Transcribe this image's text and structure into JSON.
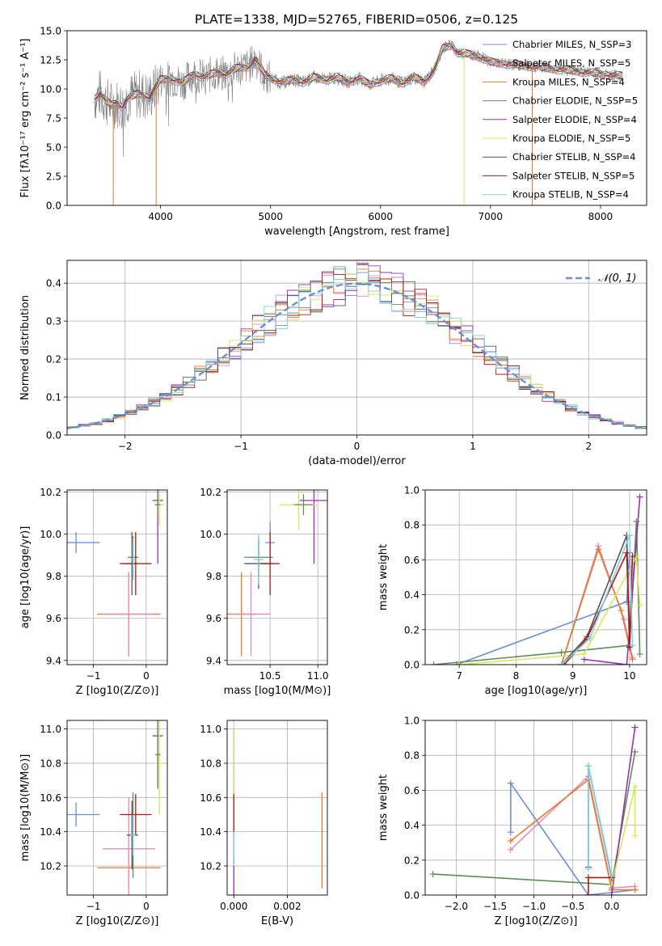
{
  "title": "PLATE=1338, MJD=52765, FIBERID=0506, z=0.125",
  "colors": {
    "chabrier_miles": "#6b8fd6",
    "salpeter_miles": "#e88ab8",
    "kroupa_miles": "#e07b2a",
    "chabrier_elodie": "#5e8c5a",
    "salpeter_elodie": "#9b30b0",
    "kroupa_elodie": "#d6e85a",
    "chabrier_stelib": "#555555",
    "salpeter_stelib": "#b01818",
    "kroupa_stelib": "#7fd3e0",
    "data_gray": "#808080",
    "grid": "#b0b0b0"
  },
  "chart_data": [
    {
      "id": "spectrum",
      "type": "line",
      "xlabel": "wavelength [Angstrom, rest frame]",
      "ylabel": "Flux [fλ10⁻¹⁷ erg cm⁻² s⁻¹ A⁻¹]",
      "xlim": [
        3150,
        8420
      ],
      "ylim": [
        0,
        15
      ],
      "xticks": [
        4000,
        5000,
        6000,
        7000,
        8000
      ],
      "yticks": [
        0.0,
        2.5,
        5.0,
        7.5,
        10.0,
        12.5,
        15.0
      ],
      "grid": false,
      "legend_position": "top-right",
      "legend": [
        "Chabrier MILES, N_SSP=3",
        "Salpeter MILES, N_SSP=5",
        "Kroupa MILES, N_SSP=4",
        "Chabrier ELODIE, N_SSP=5",
        "Salpeter ELODIE, N_SSP=4",
        "Kroupa ELODIE, N_SSP=5",
        "Chabrier STELIB, N_SSP=4",
        "Salpeter STELIB, N_SSP=5",
        "Kroupa STELIB, N_SSP=4"
      ],
      "model_curve": {
        "x": [
          3400,
          3450,
          3500,
          3550,
          3600,
          3650,
          3700,
          3800,
          3900,
          4000,
          4100,
          4200,
          4300,
          4400,
          4500,
          4600,
          4700,
          4800,
          4861,
          4950,
          5100,
          5200,
          5300,
          5400,
          5500,
          5600,
          5700,
          5800,
          5900,
          6000,
          6100,
          6200,
          6300,
          6400,
          6500,
          6563,
          6650,
          6700,
          6800,
          6900,
          7000,
          7100,
          7200,
          7300,
          7400,
          7500,
          7600,
          7700,
          7800,
          7900,
          8000,
          8100,
          8200
        ],
        "y": [
          9.2,
          9.6,
          9.0,
          8.6,
          8.8,
          8.5,
          9.2,
          9.6,
          9.3,
          10.8,
          10.9,
          10.5,
          11.3,
          11.0,
          11.4,
          11.3,
          11.8,
          11.9,
          12.6,
          11.2,
          10.5,
          10.8,
          10.6,
          11.0,
          10.8,
          11.0,
          10.6,
          10.9,
          10.4,
          10.7,
          10.9,
          10.5,
          11.0,
          10.6,
          11.8,
          13.5,
          13.8,
          13.1,
          13.0,
          12.8,
          12.3,
          12.2,
          12.1,
          12.0,
          11.9,
          11.8,
          11.7,
          11.6,
          11.5,
          11.4,
          11.3,
          11.2,
          11.1
        ]
      },
      "dropouts": [
        {
          "x": 3570,
          "color": "#e07b2a"
        },
        {
          "x": 3960,
          "color": "#e07b2a"
        },
        {
          "x": 6760,
          "color": "#d6e85a"
        },
        {
          "x": 7380,
          "color": "#e07b2a"
        }
      ]
    },
    {
      "id": "residuals",
      "type": "area",
      "xlabel": "(data-model)/error",
      "ylabel": "Normed distribution",
      "xlim": [
        -2.5,
        2.5
      ],
      "ylim": [
        0,
        0.46
      ],
      "xticks": [
        -2,
        -1,
        0,
        1,
        2
      ],
      "yticks": [
        0.0,
        0.1,
        0.2,
        0.3,
        0.4
      ],
      "grid": true,
      "legend_position": "top-right",
      "legend": [
        "N(0,1)"
      ],
      "bin_width": 0.1
    },
    {
      "id": "age_vs_Z",
      "type": "scatter",
      "xlabel": "Z [log10(Z/Z⊙)]",
      "ylabel": "age [log10(age/yr)]",
      "xlim": [
        -1.5,
        0.4
      ],
      "ylim": [
        9.38,
        10.21
      ],
      "xticks": [
        -1,
        0
      ],
      "yticks": [
        9.4,
        9.6,
        9.8,
        10.0,
        10.2
      ],
      "grid": true,
      "points": [
        {
          "x": -1.33,
          "y": 9.96,
          "xerr": 0.45,
          "yerr": 0.05,
          "color": "#6b8fd6"
        },
        {
          "x": -0.33,
          "y": 9.62,
          "xerr": 0.6,
          "yerr": 0.2,
          "color": "#e07b2a"
        },
        {
          "x": -0.33,
          "y": 9.62,
          "xerr": 0.5,
          "yerr": 0.2,
          "color": "#e88ab8"
        },
        {
          "x": -0.25,
          "y": 9.89,
          "xerr": 0.1,
          "yerr": 0.1,
          "color": "#5e8c5a"
        },
        {
          "x": -0.27,
          "y": 9.86,
          "xerr": 0.1,
          "yerr": 0.15,
          "color": "#555555"
        },
        {
          "x": -0.2,
          "y": 9.86,
          "xerr": 0.3,
          "yerr": 0.15,
          "color": "#b01818"
        },
        {
          "x": -0.25,
          "y": 9.88,
          "xerr": 0.05,
          "yerr": 0.1,
          "color": "#7fd3e0"
        },
        {
          "x": 0.22,
          "y": 10.16,
          "xerr": 0.1,
          "yerr": 0.3,
          "color": "#9b30b0"
        },
        {
          "x": 0.25,
          "y": 10.14,
          "xerr": 0.1,
          "yerr": 0.1,
          "color": "#d6e85a"
        },
        {
          "x": 0.22,
          "y": 10.14,
          "xerr": 0.05,
          "yerr": 0.05,
          "color": "#5e8c5a"
        }
      ]
    },
    {
      "id": "age_vs_mass",
      "type": "scatter",
      "xlabel": "mass [log10(M/M⊙)]",
      "ylabel": "",
      "xlim": [
        10.05,
        11.1
      ],
      "ylim": [
        9.38,
        10.21
      ],
      "xticks": [
        10.5,
        11.0
      ],
      "yticks": [
        9.4,
        9.6,
        9.8,
        10.0,
        10.2
      ],
      "grid": true,
      "points": [
        {
          "x": 10.5,
          "y": 9.96,
          "xerr": 0.05,
          "yerr": 0.1,
          "color": "#6b8fd6"
        },
        {
          "x": 10.2,
          "y": 9.62,
          "xerr": 0.15,
          "yerr": 0.2,
          "color": "#e07b2a"
        },
        {
          "x": 10.3,
          "y": 9.62,
          "xerr": 0.2,
          "yerr": 0.2,
          "color": "#e88ab8"
        },
        {
          "x": 10.38,
          "y": 9.89,
          "xerr": 0.15,
          "yerr": 0.08,
          "color": "#5e8c5a"
        },
        {
          "x": 10.38,
          "y": 9.86,
          "xerr": 0.15,
          "yerr": 0.12,
          "color": "#555555"
        },
        {
          "x": 10.5,
          "y": 9.86,
          "xerr": 0.1,
          "yerr": 0.15,
          "color": "#b01818"
        },
        {
          "x": 10.38,
          "y": 9.88,
          "xerr": 0.05,
          "yerr": 0.12,
          "color": "#7fd3e0"
        },
        {
          "x": 10.96,
          "y": 10.16,
          "xerr": 0.15,
          "yerr": 0.3,
          "color": "#9b30b0"
        },
        {
          "x": 10.8,
          "y": 10.14,
          "xerr": 0.2,
          "yerr": 0.12,
          "color": "#d6e85a"
        },
        {
          "x": 10.85,
          "y": 10.14,
          "xerr": 0.1,
          "yerr": 0.05,
          "color": "#5e8c5a"
        }
      ]
    },
    {
      "id": "massweight_vs_age",
      "type": "line",
      "xlabel": "age  [log10(age/yr)]",
      "ylabel": "mass weight",
      "xlim": [
        6.4,
        10.3
      ],
      "ylim": [
        0,
        1.0
      ],
      "xticks": [
        7,
        8,
        9,
        10
      ],
      "yticks": [
        0.0,
        0.2,
        0.4,
        0.6,
        0.8,
        1.0
      ],
      "grid": true,
      "series": [
        {
          "color": "#6b8fd6",
          "x": [
            6.95,
            9.95,
            10.0
          ],
          "y": [
            0.0,
            0.36,
            0.64
          ]
        },
        {
          "color": "#e88ab8",
          "x": [
            8.8,
            9.45,
            9.9,
            10.05
          ],
          "y": [
            0.0,
            0.68,
            0.26,
            0.04
          ]
        },
        {
          "color": "#e07b2a",
          "x": [
            8.8,
            9.45,
            9.85,
            10.05
          ],
          "y": [
            0.0,
            0.66,
            0.31,
            0.03
          ]
        },
        {
          "color": "#5e8c5a",
          "x": [
            6.55,
            8.8,
            10.0,
            10.12,
            10.18
          ],
          "y": [
            0.0,
            0.07,
            0.11,
            0.82,
            0.06
          ]
        },
        {
          "color": "#9b30b0",
          "x": [
            9.2,
            9.95,
            10.18
          ],
          "y": [
            0.03,
            0.0,
            0.96
          ]
        },
        {
          "color": "#d6e85a",
          "x": [
            7.0,
            9.2,
            10.12,
            10.18
          ],
          "y": [
            0.0,
            0.06,
            0.62,
            0.34
          ]
        },
        {
          "color": "#555555",
          "x": [
            8.8,
            9.25,
            9.95,
            10.0
          ],
          "y": [
            0.0,
            0.16,
            0.74,
            0.1
          ]
        },
        {
          "color": "#b01818",
          "x": [
            8.85,
            9.25,
            9.95,
            10.0,
            10.05
          ],
          "y": [
            0.0,
            0.15,
            0.64,
            0.1,
            0.62
          ]
        },
        {
          "color": "#7fd3e0",
          "x": [
            8.8,
            9.3,
            10.0,
            10.05
          ],
          "y": [
            0.0,
            0.15,
            0.74,
            0.11
          ]
        }
      ]
    },
    {
      "id": "mass_vs_Z",
      "type": "scatter",
      "xlabel": "Z [log10(Z/Z⊙)]",
      "ylabel": "mass [log10(M/M⊙)]",
      "xlim": [
        -1.5,
        0.4
      ],
      "ylim": [
        10.03,
        11.05
      ],
      "xticks": [
        -1,
        0
      ],
      "yticks": [
        10.2,
        10.4,
        10.6,
        10.8,
        11.0
      ],
      "grid": true,
      "points": [
        {
          "x": -1.33,
          "y": 10.5,
          "xerr": 0.45,
          "yerr": 0.07,
          "color": "#6b8fd6"
        },
        {
          "x": -0.33,
          "y": 10.19,
          "xerr": 0.6,
          "yerr": 0.13,
          "color": "#e07b2a"
        },
        {
          "x": -0.33,
          "y": 10.3,
          "xerr": 0.5,
          "yerr": 0.3,
          "color": "#e88ab8"
        },
        {
          "x": -0.25,
          "y": 10.38,
          "xerr": 0.1,
          "yerr": 0.25,
          "color": "#5e8c5a"
        },
        {
          "x": -0.27,
          "y": 10.38,
          "xerr": 0.1,
          "yerr": 0.2,
          "color": "#555555"
        },
        {
          "x": -0.2,
          "y": 10.5,
          "xerr": 0.3,
          "yerr": 0.12,
          "color": "#b01818"
        },
        {
          "x": -0.25,
          "y": 10.38,
          "xerr": 0.05,
          "yerr": 0.12,
          "color": "#7fd3e0"
        },
        {
          "x": 0.22,
          "y": 10.96,
          "xerr": 0.1,
          "yerr": 0.3,
          "color": "#9b30b0"
        },
        {
          "x": 0.25,
          "y": 10.8,
          "xerr": 0.1,
          "yerr": 0.3,
          "color": "#d6e85a"
        },
        {
          "x": 0.22,
          "y": 10.85,
          "xerr": 0.05,
          "yerr": 0.2,
          "color": "#5e8c5a"
        }
      ]
    },
    {
      "id": "mass_vs_ebv",
      "type": "scatter",
      "xlabel": "E(B-V)",
      "ylabel": "",
      "xlim": [
        -0.00025,
        0.0035
      ],
      "ylim": [
        10.03,
        11.05
      ],
      "xticks": [
        0.0,
        0.002
      ],
      "xtick_labels": [
        "0.000",
        "0.002"
      ],
      "yticks": [
        10.2,
        10.4,
        10.6,
        10.8,
        11.0
      ],
      "grid": true,
      "points": [
        {
          "x": 0.0,
          "y": 10.5,
          "yerr": 0.5,
          "color": "#9b30b0"
        },
        {
          "x": 0.0,
          "y": 10.7,
          "yerr": 0.3,
          "color": "#d6e85a"
        },
        {
          "x": 0.0,
          "y": 10.5,
          "yerr": 0.12,
          "color": "#b01818"
        },
        {
          "x": 0.0,
          "y": 10.3,
          "yerr": 0.1,
          "color": "#7fd3e0"
        },
        {
          "x": 0.0033,
          "y": 10.35,
          "yerr": 0.28,
          "color": "#e07b2a"
        }
      ]
    },
    {
      "id": "massweight_vs_Z",
      "type": "line",
      "xlabel": "Z [log10(Z/Z⊙)]",
      "ylabel": "mass weight",
      "xlim": [
        -2.4,
        0.45
      ],
      "ylim": [
        0,
        1.0
      ],
      "xticks": [
        -2.0,
        -1.5,
        -1.0,
        -0.5,
        0.0
      ],
      "yticks": [
        0.0,
        0.2,
        0.4,
        0.6,
        0.8,
        1.0
      ],
      "grid": true,
      "series": [
        {
          "color": "#6b8fd6",
          "x": [
            -1.3,
            -1.3,
            -0.3,
            0.3
          ],
          "y": [
            0.36,
            0.64,
            0.0,
            0.03
          ]
        },
        {
          "color": "#e88ab8",
          "x": [
            -1.3,
            -0.3,
            0.0,
            0.3
          ],
          "y": [
            0.26,
            0.68,
            0.04,
            0.05
          ]
        },
        {
          "color": "#e07b2a",
          "x": [
            -1.3,
            -0.3,
            0.0,
            0.3
          ],
          "y": [
            0.31,
            0.66,
            0.03,
            0.03
          ]
        },
        {
          "color": "#5e8c5a",
          "x": [
            -2.3,
            0.0,
            0.3
          ],
          "y": [
            0.12,
            0.06,
            0.82
          ]
        },
        {
          "color": "#9b30b0",
          "x": [
            0.0,
            0.3
          ],
          "y": [
            0.0,
            0.96
          ]
        },
        {
          "color": "#d6e85a",
          "x": [
            0.0,
            0.3,
            0.3
          ],
          "y": [
            0.06,
            0.62,
            0.34
          ]
        },
        {
          "color": "#555555",
          "x": [
            -0.3,
            -0.3,
            0.0
          ],
          "y": [
            0.16,
            0.74,
            0.1
          ]
        },
        {
          "color": "#b01818",
          "x": [
            -0.3,
            -0.3,
            0.0
          ],
          "y": [
            0.0,
            0.1,
            0.1
          ]
        },
        {
          "color": "#7fd3e0",
          "x": [
            -0.3,
            -0.3,
            0.0
          ],
          "y": [
            0.15,
            0.74,
            0.11
          ]
        }
      ]
    }
  ]
}
